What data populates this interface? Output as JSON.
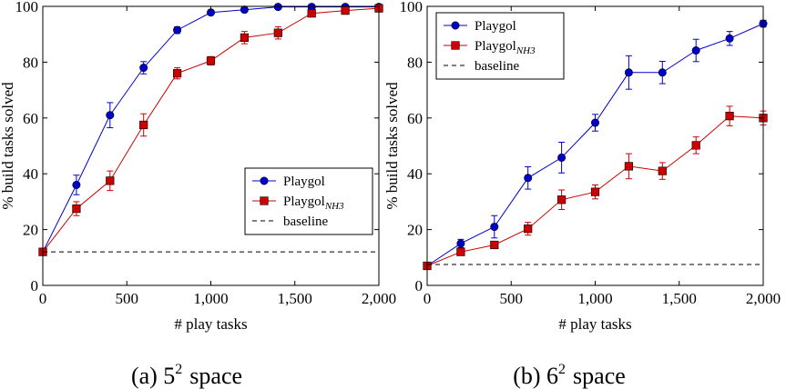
{
  "chart_data": [
    {
      "type": "line",
      "caption": "(a) 5² space",
      "caption_prefix": "(a) 5",
      "caption_sup": "2",
      "caption_suffix": "space",
      "xlabel": "# play tasks",
      "ylabel": "% build tasks solved",
      "xlim": [
        0,
        2000
      ],
      "ylim": [
        0,
        100
      ],
      "xticks": [
        0,
        500,
        1000,
        1500,
        2000
      ],
      "xtick_labels": [
        "0",
        "500",
        "1,000",
        "1,500",
        "2,000"
      ],
      "yticks": [
        0,
        20,
        40,
        60,
        80,
        100
      ],
      "ytick_labels": [
        "0",
        "20",
        "40",
        "60",
        "80",
        "100"
      ],
      "grid": false,
      "legend_position": "center-right",
      "series": [
        {
          "name": "Playgol",
          "color": "#0000cc",
          "marker": "circle",
          "x": [
            0,
            200,
            400,
            600,
            800,
            1000,
            1200,
            1400,
            1600,
            1800,
            2000
          ],
          "y": [
            12,
            36,
            61,
            78,
            91.5,
            97.8,
            98.8,
            99.8,
            99.8,
            99.8,
            99.8
          ],
          "err": [
            0,
            3.5,
            4.5,
            2.2,
            1.2,
            0.8,
            0.6,
            0.3,
            0.3,
            0.3,
            0.3
          ]
        },
        {
          "name": "Playgol",
          "name_sub": "NH3",
          "color": "#cc0000",
          "marker": "square",
          "x": [
            0,
            200,
            400,
            600,
            800,
            1000,
            1200,
            1400,
            1600,
            1800,
            2000
          ],
          "y": [
            12,
            27.5,
            37.5,
            57.5,
            76,
            80.5,
            88.8,
            90.5,
            97.5,
            98.5,
            99.3
          ],
          "err": [
            0,
            2.5,
            3.5,
            4,
            2,
            1.5,
            2.2,
            2.2,
            1.2,
            1.3,
            0.6
          ]
        },
        {
          "name": "baseline",
          "color": "#000000",
          "dash": true,
          "x": [
            0,
            2000
          ],
          "y": [
            12,
            12
          ]
        }
      ]
    },
    {
      "type": "line",
      "caption": "(b) 6² space",
      "caption_prefix": "(b) 6",
      "caption_sup": "2",
      "caption_suffix": "space",
      "xlabel": "# play tasks",
      "ylabel": "% build tasks solved",
      "xlim": [
        0,
        2000
      ],
      "ylim": [
        0,
        100
      ],
      "xticks": [
        0,
        500,
        1000,
        1500,
        2000
      ],
      "xtick_labels": [
        "0",
        "500",
        "1,000",
        "1,500",
        "2,000"
      ],
      "yticks": [
        0,
        20,
        40,
        60,
        80,
        100
      ],
      "ytick_labels": [
        "0",
        "20",
        "40",
        "60",
        "80",
        "100"
      ],
      "grid": false,
      "legend_position": "top-left",
      "series": [
        {
          "name": "Playgol",
          "color": "#0000cc",
          "marker": "circle",
          "x": [
            0,
            200,
            400,
            600,
            800,
            1000,
            1200,
            1400,
            1600,
            1800,
            2000
          ],
          "y": [
            7,
            15,
            21,
            38.5,
            45.8,
            58.3,
            76.3,
            76.3,
            84.2,
            88.5,
            93.8
          ],
          "err": [
            0,
            1.5,
            4,
            4,
            5.5,
            3,
            6,
            4,
            4,
            2.5,
            1.2
          ]
        },
        {
          "name": "Playgol",
          "name_sub": "NH3",
          "color": "#cc0000",
          "marker": "square",
          "x": [
            0,
            200,
            400,
            600,
            800,
            1000,
            1200,
            1400,
            1600,
            1800,
            2000
          ],
          "y": [
            7,
            12,
            14.5,
            20.3,
            30.7,
            33.5,
            42.7,
            41,
            50.2,
            60.7,
            60
          ],
          "err": [
            0,
            0.8,
            1.2,
            2.3,
            3.5,
            2.5,
            4.5,
            3,
            3,
            3.5,
            2.5
          ]
        },
        {
          "name": "baseline",
          "color": "#000000",
          "dash": true,
          "x": [
            0,
            2000
          ],
          "y": [
            7.5,
            7.5
          ]
        }
      ]
    }
  ]
}
